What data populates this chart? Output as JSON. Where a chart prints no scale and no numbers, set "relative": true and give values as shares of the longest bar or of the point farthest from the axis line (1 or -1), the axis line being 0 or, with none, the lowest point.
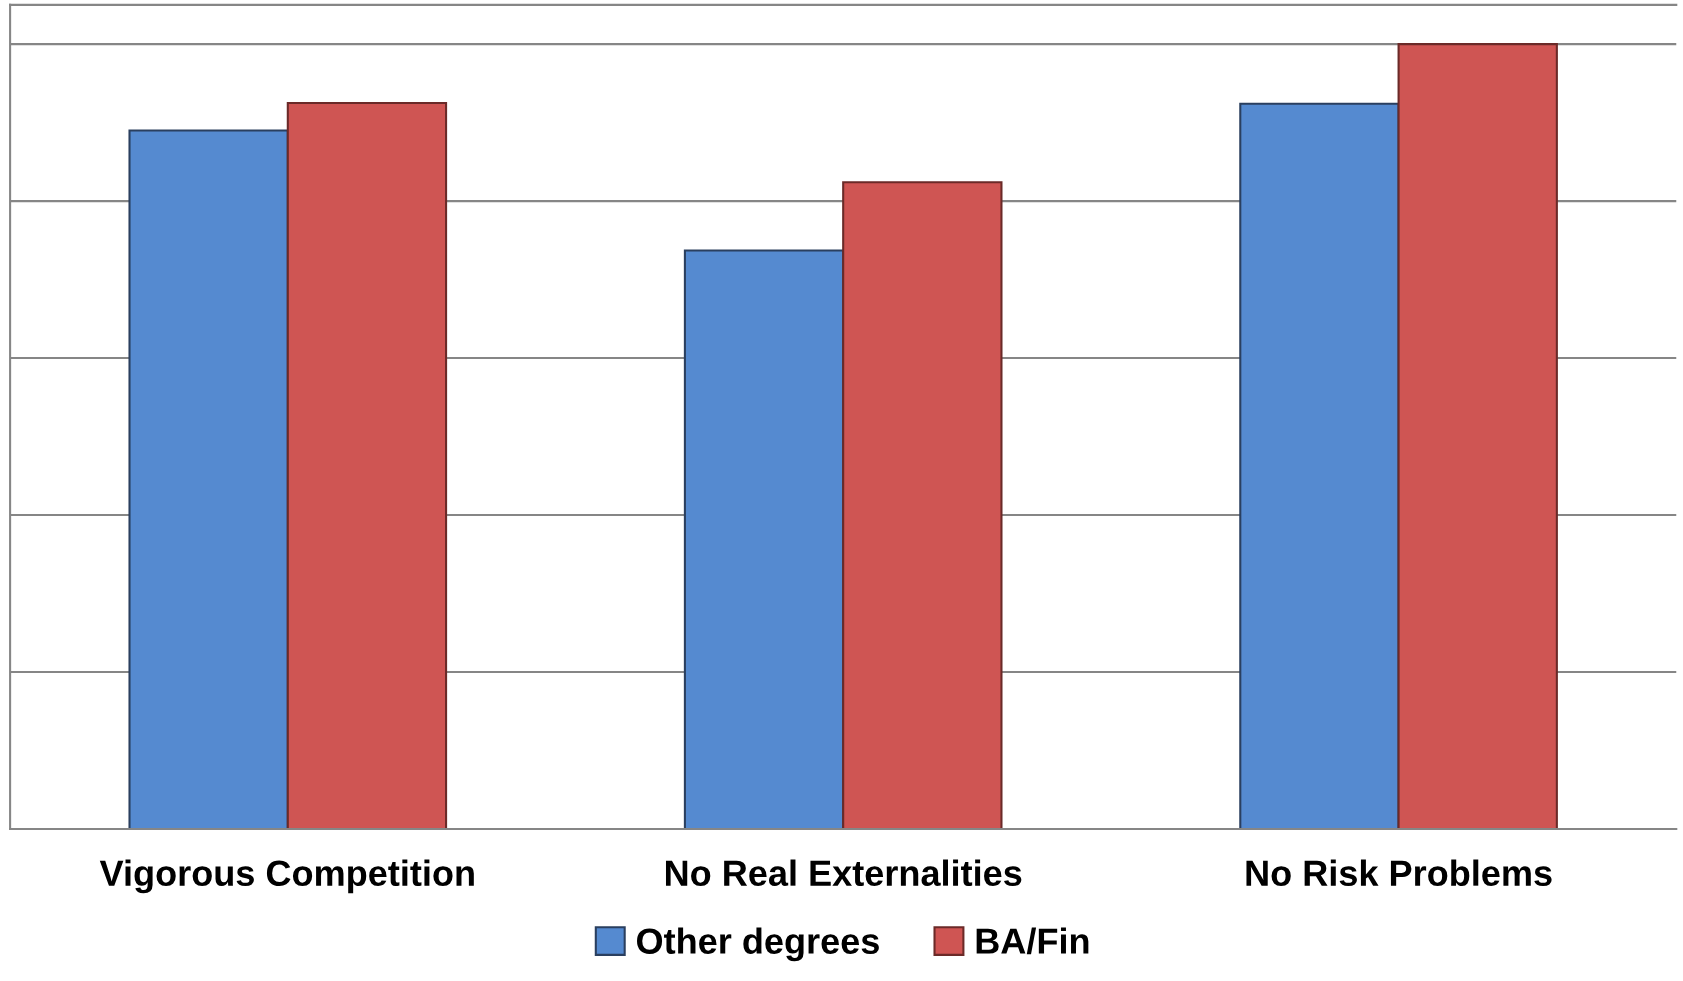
{
  "chart_data": {
    "type": "bar",
    "relative": true,
    "categories": [
      "Vigorous Competition",
      "No Real Externalities",
      "No Risk Problems"
    ],
    "series": [
      {
        "name": "Other degrees",
        "color": "#558ad0",
        "values": [
          0.89,
          0.737,
          0.924
        ]
      },
      {
        "name": "BA/Fin",
        "color": "#cf5553",
        "values": [
          0.925,
          0.824,
          1
        ]
      }
    ],
    "grid": "y",
    "legend": "bottom"
  }
}
